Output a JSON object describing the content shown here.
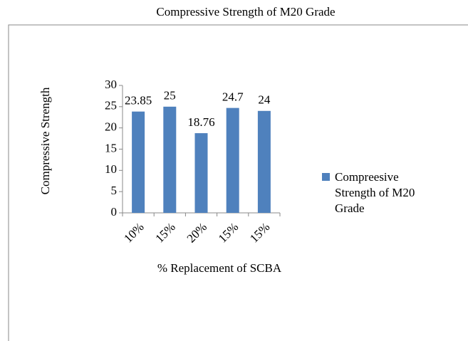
{
  "chart_data": {
    "type": "bar",
    "title": "Compressive Strength of M20 Grade",
    "x_label": "% Replacement of SCBA",
    "y_label": "Compressive Strength",
    "categories": [
      "10%",
      "15%",
      "20%",
      "15%",
      "15%"
    ],
    "series": [
      {
        "name": "Compreesive Strength of M20 Grade",
        "color": "#4f81bd",
        "values": [
          23.85,
          25,
          18.76,
          24.7,
          24
        ]
      }
    ],
    "ylim": [
      0,
      30
    ],
    "yticks": [
      0,
      5,
      10,
      15,
      20,
      25,
      30
    ],
    "legend": "right"
  }
}
